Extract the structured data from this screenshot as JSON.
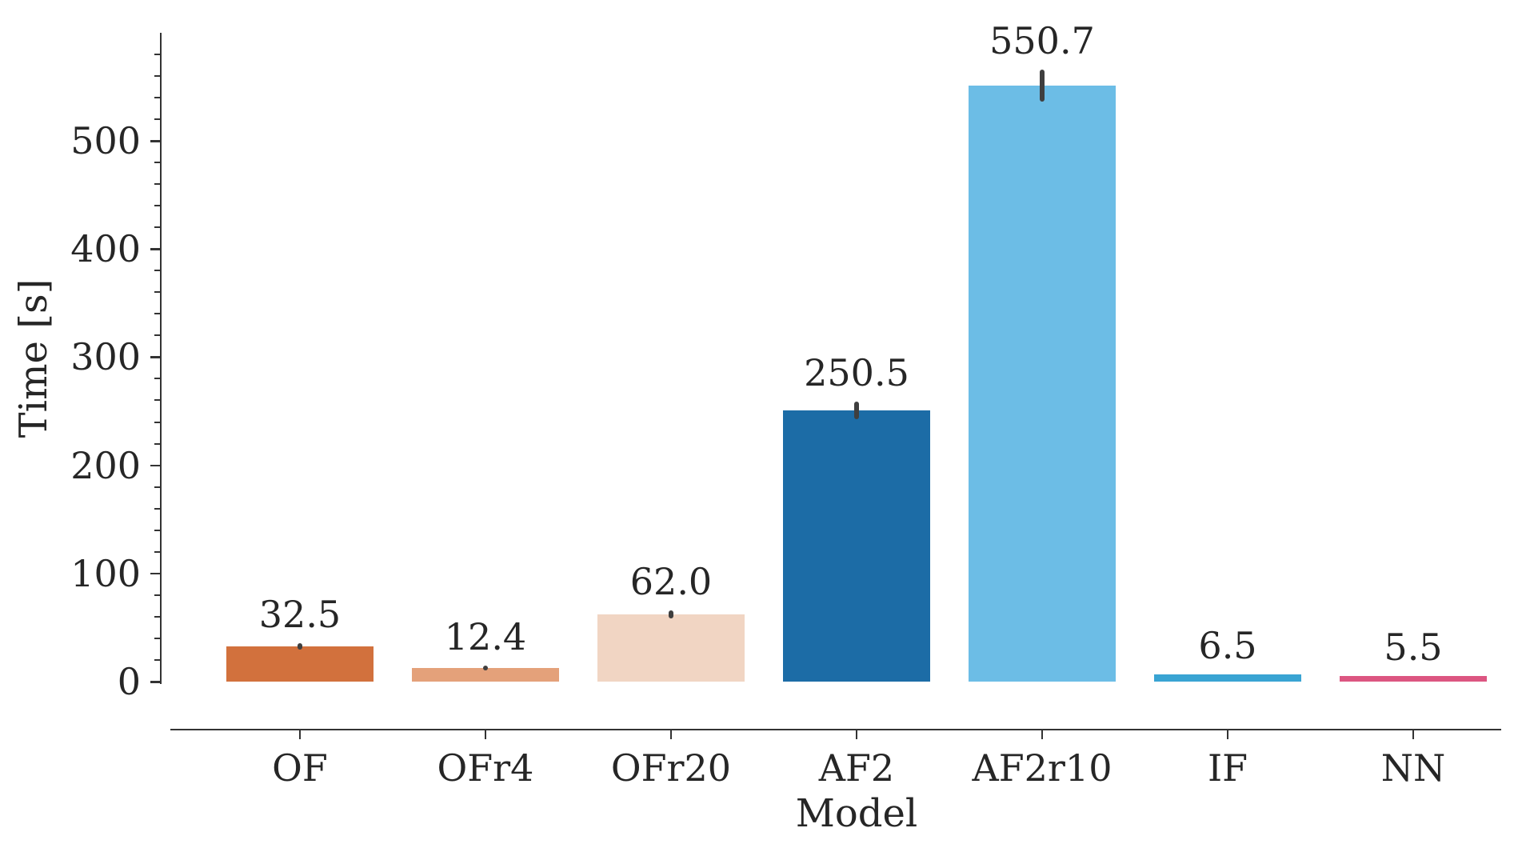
{
  "chart_data": {
    "type": "bar",
    "title": "",
    "xlabel": "Model",
    "ylabel": "Time [s]",
    "categories": [
      "OF",
      "OFr4",
      "OFr20",
      "AF2",
      "AF2r10",
      "IF",
      "NN"
    ],
    "values": [
      32.5,
      12.4,
      62.0,
      250.5,
      550.7,
      6.5,
      5.5
    ],
    "value_labels": [
      "32.5",
      "12.4",
      "62.0",
      "250.5",
      "550.7",
      "6.5",
      "5.5"
    ],
    "error_margins": [
      3,
      2,
      4,
      8,
      15,
      0,
      0
    ],
    "bar_colors": [
      "#d2713d",
      "#e4a17a",
      "#f1d5c3",
      "#1c6ca6",
      "#6cbde6",
      "#39a4d3",
      "#dc5681"
    ],
    "ylim": [
      0,
      600
    ],
    "yticks": [
      0,
      100,
      200,
      300,
      400,
      500
    ],
    "minor_tick_step": 20,
    "minor_tick_max": 580,
    "grid": false,
    "legend_position": "none",
    "axis_color": "#333333",
    "text_color": "#262626",
    "error_bar_color": "#3f3f3f"
  }
}
